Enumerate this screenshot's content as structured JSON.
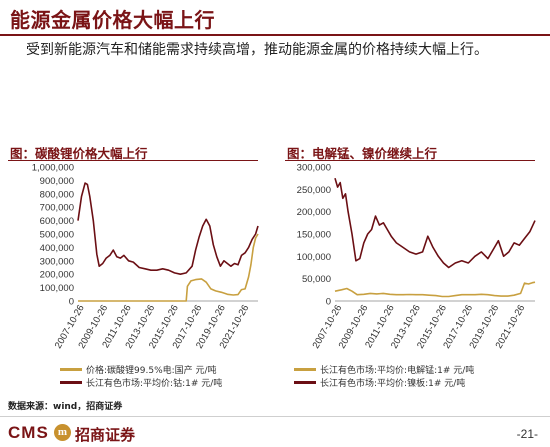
{
  "header": {
    "title": "能源金属价格大幅上行",
    "subtitle": "受到新能源汽车和储能需求持续高增，推动能源金属的价格持续大幅上行。"
  },
  "charts_titles": {
    "left": "图：碳酸锂价格大幅上行",
    "right": "图：电解锰、镍价继续上行"
  },
  "legend": {
    "left": [
      "价格:碳酸锂99.5%电:国产 元/吨",
      "长江有色市场:平均价:钴:1# 元/吨"
    ],
    "right": [
      "长江有色市场:平均价:电解锰:1# 元/吨",
      "长江有色市场:平均价:镍板:1# 元/吨"
    ]
  },
  "colors": {
    "brand": "#7a1416",
    "gold": "#c8a040",
    "series_dark": "#6b0f14"
  },
  "footer": {
    "source": "数据来源：wind，招商证券",
    "logo_text": "CMS",
    "logo_mark": "m",
    "logo_cn": "招商证券",
    "page": "-21-"
  },
  "chart_data": [
    {
      "type": "line",
      "title": "图：碳酸锂价格大幅上行",
      "ylim": [
        0,
        1000000
      ],
      "yticks": [
        "0",
        "100,000",
        "200,000",
        "300,000",
        "400,000",
        "500,000",
        "600,000",
        "700,000",
        "800,000",
        "900,000",
        "1,000,000"
      ],
      "xticks": [
        "2007-10-26",
        "2009-10-26",
        "2011-10-26",
        "2013-10-26",
        "2015-10-26",
        "2017-10-26",
        "2019-10-26",
        "2021-10-26"
      ],
      "xlim": [
        2007.3,
        2022.6
      ],
      "series": [
        {
          "name": "长江有色市场:平均价:钴:1# 元/吨",
          "color": "#6b0f14",
          "points": [
            [
              2007.3,
              600000
            ],
            [
              2007.6,
              780000
            ],
            [
              2007.9,
              880000
            ],
            [
              2008.1,
              870000
            ],
            [
              2008.3,
              780000
            ],
            [
              2008.6,
              600000
            ],
            [
              2008.9,
              350000
            ],
            [
              2009.1,
              260000
            ],
            [
              2009.4,
              280000
            ],
            [
              2009.7,
              320000
            ],
            [
              2010.0,
              340000
            ],
            [
              2010.3,
              380000
            ],
            [
              2010.6,
              330000
            ],
            [
              2010.9,
              320000
            ],
            [
              2011.2,
              340000
            ],
            [
              2011.6,
              300000
            ],
            [
              2012.0,
              290000
            ],
            [
              2012.5,
              250000
            ],
            [
              2013.0,
              240000
            ],
            [
              2013.5,
              230000
            ],
            [
              2014.0,
              230000
            ],
            [
              2014.5,
              240000
            ],
            [
              2015.0,
              230000
            ],
            [
              2015.5,
              210000
            ],
            [
              2016.0,
              200000
            ],
            [
              2016.5,
              210000
            ],
            [
              2017.0,
              260000
            ],
            [
              2017.3,
              380000
            ],
            [
              2017.6,
              480000
            ],
            [
              2017.9,
              560000
            ],
            [
              2018.2,
              610000
            ],
            [
              2018.5,
              560000
            ],
            [
              2018.8,
              420000
            ],
            [
              2019.1,
              330000
            ],
            [
              2019.4,
              260000
            ],
            [
              2019.7,
              300000
            ],
            [
              2020.0,
              280000
            ],
            [
              2020.3,
              260000
            ],
            [
              2020.6,
              280000
            ],
            [
              2020.9,
              270000
            ],
            [
              2021.2,
              340000
            ],
            [
              2021.5,
              360000
            ],
            [
              2021.8,
              400000
            ],
            [
              2022.1,
              460000
            ],
            [
              2022.4,
              500000
            ],
            [
              2022.6,
              560000
            ]
          ]
        },
        {
          "name": "价格:碳酸锂99.5%电:国产 元/吨",
          "color": "#c8a040",
          "points": [
            [
              2007.3,
              0
            ],
            [
              2016.5,
              0
            ],
            [
              2016.6,
              110000
            ],
            [
              2016.9,
              150000
            ],
            [
              2017.3,
              160000
            ],
            [
              2017.8,
              165000
            ],
            [
              2018.2,
              140000
            ],
            [
              2018.6,
              90000
            ],
            [
              2019.0,
              75000
            ],
            [
              2019.5,
              65000
            ],
            [
              2020.0,
              50000
            ],
            [
              2020.5,
              45000
            ],
            [
              2020.9,
              48000
            ],
            [
              2021.2,
              85000
            ],
            [
              2021.5,
              90000
            ],
            [
              2021.8,
              180000
            ],
            [
              2022.0,
              270000
            ],
            [
              2022.2,
              400000
            ],
            [
              2022.4,
              470000
            ],
            [
              2022.6,
              500000
            ]
          ]
        }
      ]
    },
    {
      "type": "line",
      "title": "图：电解锰、镍价继续上行",
      "ylim": [
        0,
        300000
      ],
      "yticks": [
        "0",
        "50,000",
        "100,000",
        "150,000",
        "200,000",
        "250,000",
        "300,000"
      ],
      "xticks": [
        "2007-10-26",
        "2009-10-26",
        "2011-10-26",
        "2013-10-26",
        "2015-10-26",
        "2017-10-26",
        "2019-10-26",
        "2021-10-26"
      ],
      "xlim": [
        2007.3,
        2022.6
      ],
      "series": [
        {
          "name": "长江有色市场:平均价:镍板:1# 元/吨",
          "color": "#6b0f14",
          "points": [
            [
              2007.3,
              275000
            ],
            [
              2007.5,
              255000
            ],
            [
              2007.7,
              265000
            ],
            [
              2007.9,
              230000
            ],
            [
              2008.1,
              240000
            ],
            [
              2008.3,
              200000
            ],
            [
              2008.6,
              150000
            ],
            [
              2008.9,
              90000
            ],
            [
              2009.2,
              95000
            ],
            [
              2009.5,
              130000
            ],
            [
              2009.8,
              150000
            ],
            [
              2010.1,
              160000
            ],
            [
              2010.4,
              190000
            ],
            [
              2010.7,
              170000
            ],
            [
              2011.0,
              175000
            ],
            [
              2011.3,
              160000
            ],
            [
              2011.6,
              145000
            ],
            [
              2012.0,
              130000
            ],
            [
              2012.5,
              120000
            ],
            [
              2013.0,
              110000
            ],
            [
              2013.5,
              105000
            ],
            [
              2014.0,
              110000
            ],
            [
              2014.4,
              145000
            ],
            [
              2014.8,
              120000
            ],
            [
              2015.2,
              100000
            ],
            [
              2015.6,
              85000
            ],
            [
              2016.0,
              75000
            ],
            [
              2016.5,
              85000
            ],
            [
              2017.0,
              90000
            ],
            [
              2017.5,
              85000
            ],
            [
              2018.0,
              100000
            ],
            [
              2018.5,
              110000
            ],
            [
              2019.0,
              95000
            ],
            [
              2019.5,
              120000
            ],
            [
              2019.8,
              135000
            ],
            [
              2020.2,
              100000
            ],
            [
              2020.6,
              110000
            ],
            [
              2021.0,
              130000
            ],
            [
              2021.4,
              125000
            ],
            [
              2021.8,
              140000
            ],
            [
              2022.2,
              155000
            ],
            [
              2022.6,
              180000
            ]
          ]
        },
        {
          "name": "长江有色市场:平均价:电解锰:1# 元/吨",
          "color": "#c8a040",
          "points": [
            [
              2007.3,
              22000
            ],
            [
              2007.8,
              25000
            ],
            [
              2008.2,
              28000
            ],
            [
              2008.6,
              22000
            ],
            [
              2009.0,
              14000
            ],
            [
              2009.5,
              15000
            ],
            [
              2010.0,
              17000
            ],
            [
              2010.5,
              16000
            ],
            [
              2011.0,
              17000
            ],
            [
              2011.5,
              15000
            ],
            [
              2012.0,
              14000
            ],
            [
              2012.5,
              14000
            ],
            [
              2013.0,
              14500
            ],
            [
              2013.5,
              14000
            ],
            [
              2014.0,
              14000
            ],
            [
              2014.5,
              13000
            ],
            [
              2015.0,
              12000
            ],
            [
              2015.5,
              10000
            ],
            [
              2016.0,
              10000
            ],
            [
              2016.5,
              12000
            ],
            [
              2017.0,
              14000
            ],
            [
              2017.5,
              14000
            ],
            [
              2018.0,
              14000
            ],
            [
              2018.5,
              15000
            ],
            [
              2019.0,
              14000
            ],
            [
              2019.5,
              12000
            ],
            [
              2020.0,
              11000
            ],
            [
              2020.5,
              11000
            ],
            [
              2021.0,
              13000
            ],
            [
              2021.5,
              17000
            ],
            [
              2021.8,
              40000
            ],
            [
              2022.1,
              38000
            ],
            [
              2022.4,
              41000
            ],
            [
              2022.6,
              42000
            ]
          ]
        }
      ]
    }
  ]
}
